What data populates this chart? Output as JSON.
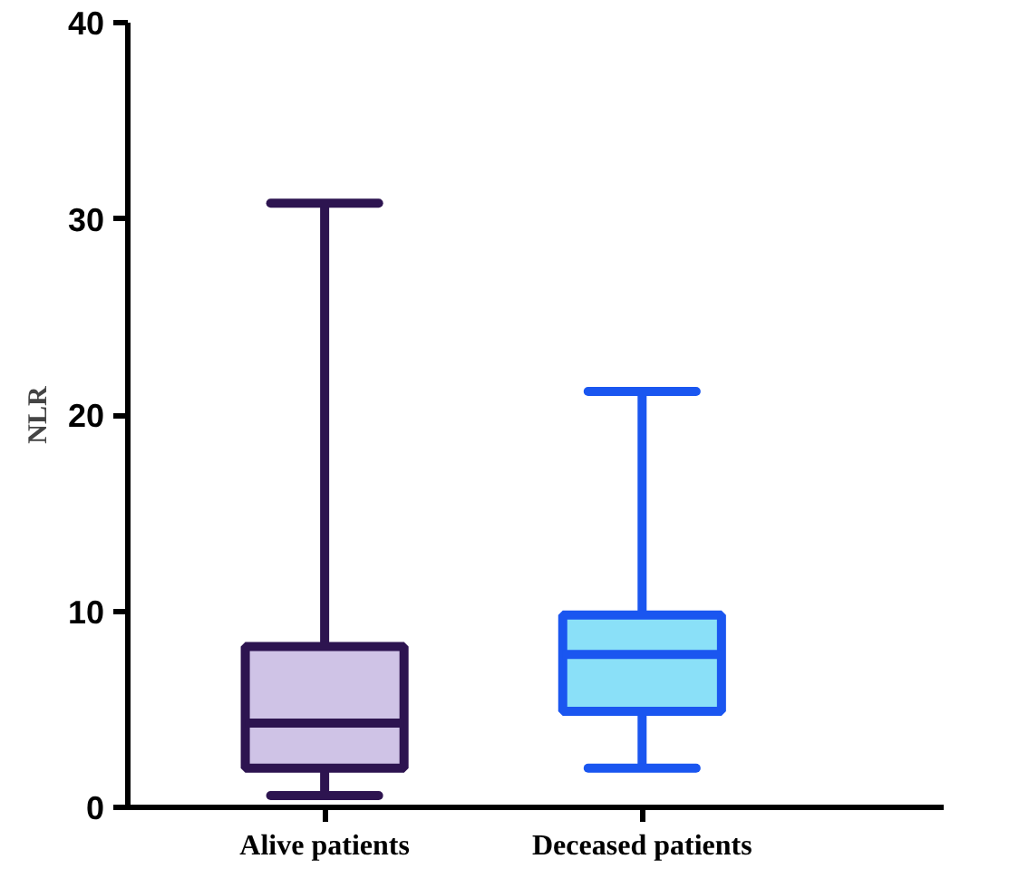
{
  "chart_data": {
    "type": "box",
    "ylabel": "NLR",
    "categories": [
      "Alive patients",
      "Deceased patients"
    ],
    "ylim": [
      0,
      40
    ],
    "yticks": [
      0,
      10,
      20,
      30,
      40
    ],
    "grid": false,
    "colors": [
      "#cfc3e6",
      "#8ae0f8"
    ],
    "series": [
      {
        "color": "#2d1450",
        "boxes": [
          {
            "low": 0.6,
            "q1": 2.0,
            "median": 4.3,
            "q3": 8.2,
            "high": 30.8
          },
          null
        ]
      },
      {
        "color": "#1a56f0",
        "boxes": [
          null,
          {
            "low": 2.0,
            "q1": 4.9,
            "median": 7.8,
            "q3": 9.8,
            "high": 21.2
          }
        ]
      }
    ]
  }
}
